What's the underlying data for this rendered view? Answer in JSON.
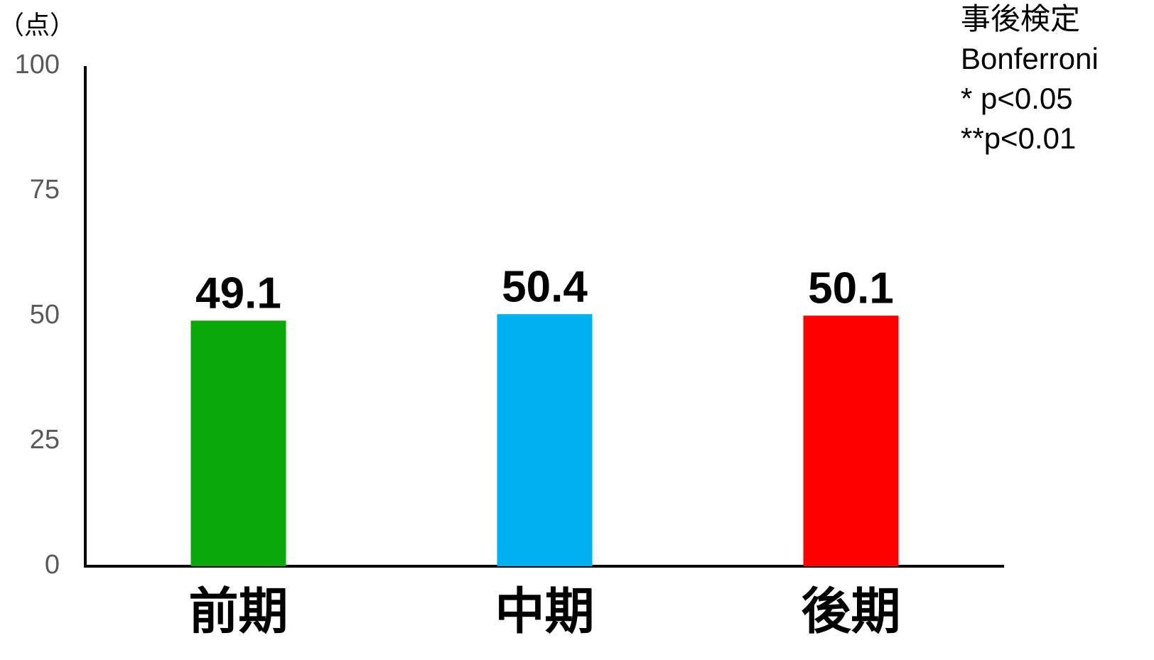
{
  "chart_data": {
    "type": "bar",
    "y_unit_label": "（点）",
    "categories": [
      "前期",
      "中期",
      "後期"
    ],
    "values": [
      49.1,
      50.4,
      50.1
    ],
    "colors": [
      "#0aa80a",
      "#00b0f0",
      "#ff0000"
    ],
    "ylim": [
      0,
      100
    ],
    "yticks": [
      0,
      25,
      50,
      75,
      100
    ],
    "grid": false,
    "annotations": [
      "事後検定",
      "Bonferroni",
      "* p<0.05",
      "**p<0.01"
    ]
  }
}
